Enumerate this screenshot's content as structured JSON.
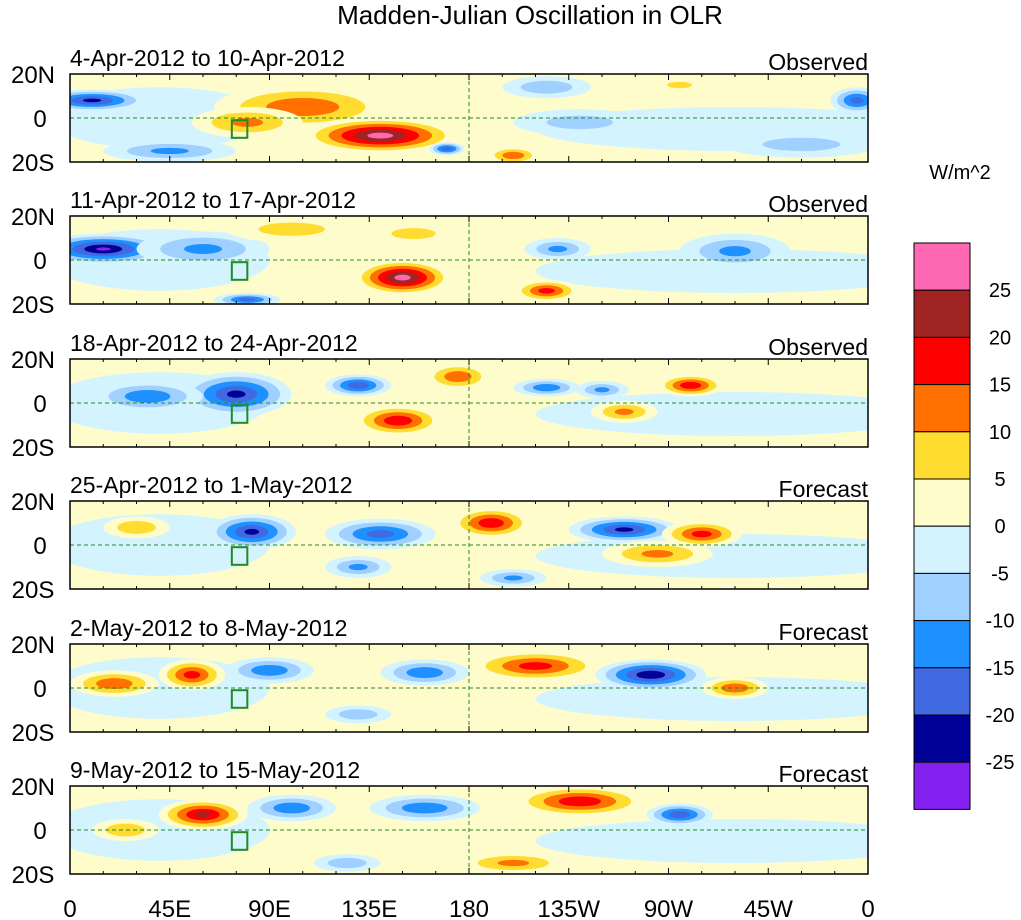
{
  "chart_data": {
    "type": "heatmap",
    "title": "Madden-Julian Oscillation in OLR",
    "colorbar": {
      "unit_label": "W/m^2",
      "tick_labels": [
        "25",
        "20",
        "15",
        "10",
        "5",
        "0",
        "-5",
        "-10",
        "-15",
        "-20",
        "-25"
      ],
      "bins": [
        {
          "min": 25,
          "max": 30,
          "color": "#ff69b4"
        },
        {
          "min": 20,
          "max": 25,
          "color": "#a02424"
        },
        {
          "min": 15,
          "max": 20,
          "color": "#ff0000"
        },
        {
          "min": 10,
          "max": 15,
          "color": "#ff7000"
        },
        {
          "min": 5,
          "max": 10,
          "color": "#ffdd30"
        },
        {
          "min": 0,
          "max": 5,
          "color": "#fffccc"
        },
        {
          "min": -5,
          "max": 0,
          "color": "#d3f4ff"
        },
        {
          "min": -10,
          "max": -5,
          "color": "#a0d0ff"
        },
        {
          "min": -15,
          "max": -10,
          "color": "#1e90ff"
        },
        {
          "min": -20,
          "max": -15,
          "color": "#4169e1"
        },
        {
          "min": -25,
          "max": -20,
          "color": "#000096"
        },
        {
          "min": -30,
          "max": -25,
          "color": "#8420f0"
        }
      ]
    },
    "x_ticks": [
      "0",
      "45E",
      "90E",
      "135E",
      "180",
      "135W",
      "90W",
      "45W",
      "0"
    ],
    "y_ticks": [
      "20N",
      "0",
      "20S"
    ],
    "lon_range": [
      0,
      360
    ],
    "lat_range": [
      -20,
      20
    ],
    "panels": [
      {
        "title": "4-Apr-2012 to 10-Apr-2012",
        "kind": "Observed",
        "anomalies": [
          {
            "lon": 105,
            "lat": 5,
            "rx": 40,
            "ry": 10,
            "v": 15
          },
          {
            "lon": 140,
            "lat": -8,
            "rx": 35,
            "ry": 8,
            "v": 28
          },
          {
            "lon": 80,
            "lat": -2,
            "rx": 25,
            "ry": 7,
            "v": 12
          },
          {
            "lon": 10,
            "lat": 8,
            "rx": 25,
            "ry": 5,
            "v": -22
          },
          {
            "lon": 45,
            "lat": -15,
            "rx": 30,
            "ry": 5,
            "v": -12
          },
          {
            "lon": 200,
            "lat": -17,
            "rx": 12,
            "ry": 4,
            "v": 15
          },
          {
            "lon": 170,
            "lat": -14,
            "rx": 8,
            "ry": 3,
            "v": -20
          },
          {
            "lon": 230,
            "lat": -2,
            "rx": 30,
            "ry": 6,
            "v": -8
          },
          {
            "lon": 330,
            "lat": -12,
            "rx": 35,
            "ry": 6,
            "v": -8
          },
          {
            "lon": 355,
            "lat": 8,
            "rx": 12,
            "ry": 6,
            "v": -18
          },
          {
            "lon": 215,
            "lat": 14,
            "rx": 20,
            "ry": 5,
            "v": -10
          },
          {
            "lon": 275,
            "lat": 15,
            "rx": 15,
            "ry": 4,
            "v": 6
          }
        ]
      },
      {
        "title": "11-Apr-2012 to 17-Apr-2012",
        "kind": "Observed",
        "anomalies": [
          {
            "lon": 150,
            "lat": -8,
            "rx": 22,
            "ry": 8,
            "v": 28
          },
          {
            "lon": 15,
            "lat": 5,
            "rx": 30,
            "ry": 7,
            "v": -26
          },
          {
            "lon": 60,
            "lat": 5,
            "rx": 30,
            "ry": 8,
            "v": -12
          },
          {
            "lon": 215,
            "lat": -14,
            "rx": 15,
            "ry": 5,
            "v": 18
          },
          {
            "lon": 100,
            "lat": 14,
            "rx": 30,
            "ry": 6,
            "v": 8
          },
          {
            "lon": 220,
            "lat": 5,
            "rx": 15,
            "ry": 5,
            "v": -12
          },
          {
            "lon": 300,
            "lat": 4,
            "rx": 25,
            "ry": 8,
            "v": -12
          },
          {
            "lon": 80,
            "lat": -18,
            "rx": 15,
            "ry": 3,
            "v": -18
          },
          {
            "lon": 155,
            "lat": 12,
            "rx": 20,
            "ry": 5,
            "v": 8
          }
        ]
      },
      {
        "title": "18-Apr-2012 to 24-Apr-2012",
        "kind": "Observed",
        "anomalies": [
          {
            "lon": 75,
            "lat": 4,
            "rx": 25,
            "ry": 10,
            "v": -22
          },
          {
            "lon": 35,
            "lat": 3,
            "rx": 25,
            "ry": 7,
            "v": -15
          },
          {
            "lon": 148,
            "lat": -8,
            "rx": 20,
            "ry": 7,
            "v": 20
          },
          {
            "lon": 175,
            "lat": 12,
            "rx": 15,
            "ry": 6,
            "v": 15
          },
          {
            "lon": 130,
            "lat": 8,
            "rx": 15,
            "ry": 5,
            "v": -20
          },
          {
            "lon": 215,
            "lat": 7,
            "rx": 15,
            "ry": 4,
            "v": -15
          },
          {
            "lon": 280,
            "lat": 8,
            "rx": 15,
            "ry": 5,
            "v": 20
          },
          {
            "lon": 250,
            "lat": -4,
            "rx": 15,
            "ry": 5,
            "v": 12
          },
          {
            "lon": 240,
            "lat": 6,
            "rx": 12,
            "ry": 4,
            "v": -12
          }
        ]
      },
      {
        "title": "25-Apr-2012 to 1-May-2012",
        "kind": "Forecast",
        "anomalies": [
          {
            "lon": 82,
            "lat": 6,
            "rx": 20,
            "ry": 8,
            "v": -22
          },
          {
            "lon": 140,
            "lat": 5,
            "rx": 25,
            "ry": 7,
            "v": -18
          },
          {
            "lon": 190,
            "lat": 10,
            "rx": 18,
            "ry": 7,
            "v": 20
          },
          {
            "lon": 250,
            "lat": 7,
            "rx": 25,
            "ry": 6,
            "v": -22
          },
          {
            "lon": 285,
            "lat": 5,
            "rx": 18,
            "ry": 6,
            "v": 18
          },
          {
            "lon": 265,
            "lat": -4,
            "rx": 25,
            "ry": 6,
            "v": 12
          },
          {
            "lon": 30,
            "lat": 8,
            "rx": 15,
            "ry": 5,
            "v": 10
          },
          {
            "lon": 130,
            "lat": -10,
            "rx": 15,
            "ry": 5,
            "v": -12
          },
          {
            "lon": 200,
            "lat": -15,
            "rx": 15,
            "ry": 4,
            "v": -12
          }
        ]
      },
      {
        "title": "2-May-2012 to 8-May-2012",
        "kind": "Forecast",
        "anomalies": [
          {
            "lon": 55,
            "lat": 6,
            "rx": 15,
            "ry": 7,
            "v": 18
          },
          {
            "lon": 20,
            "lat": 2,
            "rx": 20,
            "ry": 6,
            "v": 15
          },
          {
            "lon": 90,
            "lat": 8,
            "rx": 20,
            "ry": 6,
            "v": -15
          },
          {
            "lon": 160,
            "lat": 7,
            "rx": 20,
            "ry": 6,
            "v": -15
          },
          {
            "lon": 210,
            "lat": 10,
            "rx": 30,
            "ry": 7,
            "v": 18
          },
          {
            "lon": 262,
            "lat": 6,
            "rx": 25,
            "ry": 7,
            "v": -25
          },
          {
            "lon": 300,
            "lat": 0,
            "rx": 15,
            "ry": 5,
            "v": 15
          },
          {
            "lon": 130,
            "lat": -12,
            "rx": 15,
            "ry": 4,
            "v": -10
          }
        ]
      },
      {
        "title": "9-May-2012 to 15-May-2012",
        "kind": "Forecast",
        "anomalies": [
          {
            "lon": 60,
            "lat": 7,
            "rx": 20,
            "ry": 7,
            "v": 22
          },
          {
            "lon": 230,
            "lat": 13,
            "rx": 30,
            "ry": 7,
            "v": 20
          },
          {
            "lon": 100,
            "lat": 10,
            "rx": 20,
            "ry": 6,
            "v": -15
          },
          {
            "lon": 160,
            "lat": 10,
            "rx": 25,
            "ry": 6,
            "v": -15
          },
          {
            "lon": 275,
            "lat": 7,
            "rx": 15,
            "ry": 5,
            "v": -20
          },
          {
            "lon": 25,
            "lat": 0,
            "rx": 15,
            "ry": 5,
            "v": 10
          },
          {
            "lon": 200,
            "lat": -15,
            "rx": 25,
            "ry": 5,
            "v": 12
          },
          {
            "lon": 125,
            "lat": -15,
            "rx": 15,
            "ry": 4,
            "v": -10
          }
        ]
      }
    ]
  }
}
